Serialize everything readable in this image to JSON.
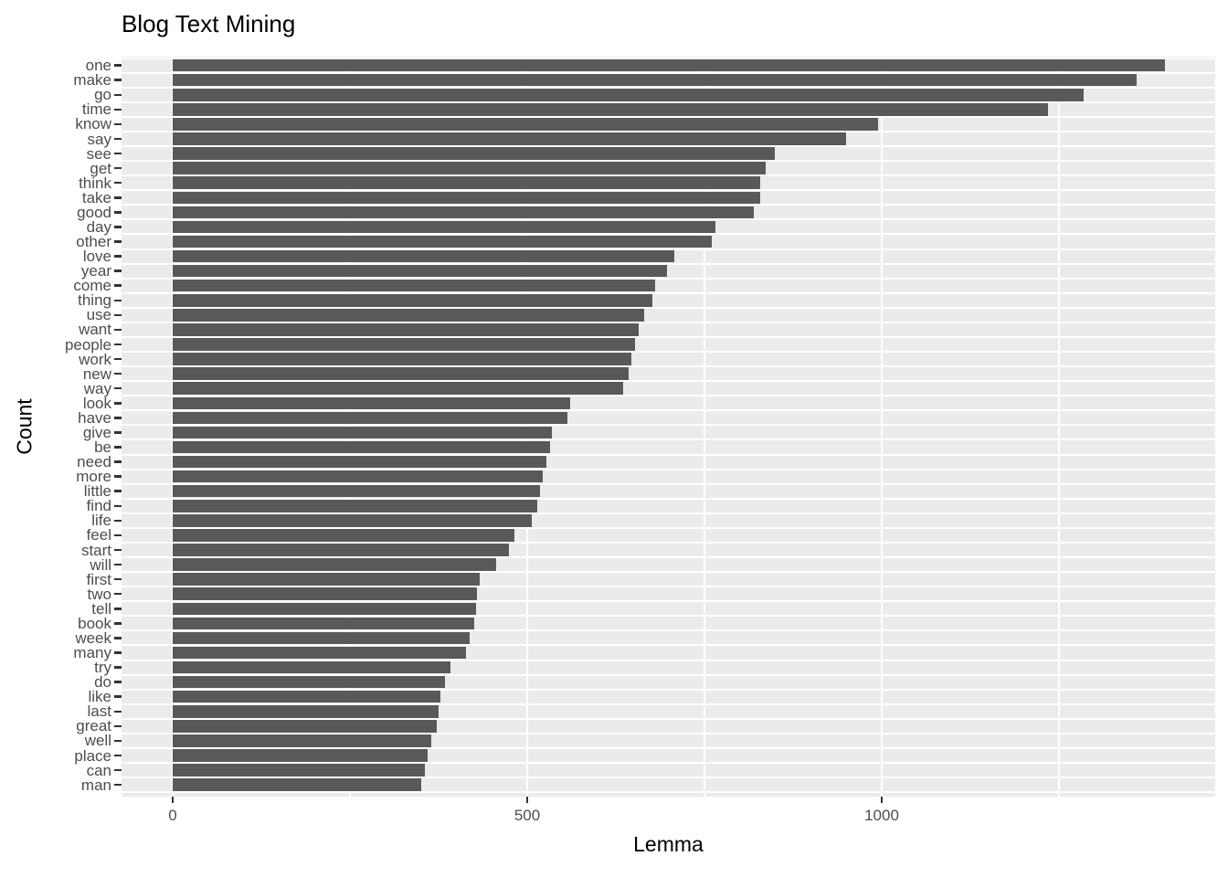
{
  "chart_data": {
    "type": "bar",
    "orientation": "horizontal",
    "title": "Blog Text Mining",
    "left_axis_title": "Count",
    "bottom_axis_title": "Lemma",
    "legend": "none",
    "grid": "on",
    "x_axis": {
      "major_ticks": [
        0,
        500,
        1000
      ],
      "minor_gridlines": [
        250,
        750,
        1250
      ],
      "xlim": [
        -70,
        1470
      ]
    },
    "categories": [
      "one",
      "make",
      "go",
      "time",
      "know",
      "say",
      "see",
      "get",
      "think",
      "take",
      "good",
      "day",
      "other",
      "love",
      "year",
      "come",
      "thing",
      "use",
      "want",
      "people",
      "work",
      "new",
      "way",
      "look",
      "have",
      "give",
      "be",
      "need",
      "more",
      "little",
      "find",
      "life",
      "feel",
      "start",
      "will",
      "first",
      "two",
      "tell",
      "book",
      "week",
      "many",
      "try",
      "do",
      "like",
      "last",
      "great",
      "well",
      "place",
      "can",
      "man"
    ],
    "values": [
      1400,
      1360,
      1285,
      1235,
      995,
      950,
      849,
      836,
      829,
      828,
      820,
      766,
      760,
      708,
      697,
      680,
      676,
      665,
      657,
      652,
      647,
      643,
      635,
      561,
      557,
      535,
      532,
      527,
      522,
      518,
      514,
      506,
      482,
      474,
      456,
      433,
      429,
      428,
      425,
      419,
      414,
      392,
      384,
      378,
      375,
      373,
      365,
      360,
      356,
      351
    ],
    "colors": {
      "bar": "#595959",
      "panel_background": "#EBEBEB",
      "gridline": "#FFFFFF",
      "axis_text": "#4D4D4D",
      "title_text": "#000000",
      "tick_mark": "#333333"
    }
  }
}
